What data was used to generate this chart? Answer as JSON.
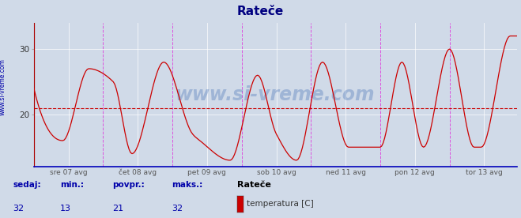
{
  "title": "Rateče",
  "title_color": "#000080",
  "title_fontsize": 11,
  "bg_color": "#d0dae8",
  "plot_bg_color": "#d0dae8",
  "line_color": "#cc0000",
  "line_width": 0.9,
  "y_min": 12,
  "y_max": 34,
  "y_ticks": [
    20,
    30
  ],
  "avg_line_y": 21,
  "avg_line_color": "#cc0000",
  "grid_color": "#ffffff",
  "watermark": "www.si-vreme.com",
  "watermark_color": "#2255aa",
  "watermark_alpha": 0.28,
  "watermark_fontsize": 17,
  "vline_color_dashed": "#dd44dd",
  "vline_color_solid": "#888888",
  "x_tick_labels": [
    "sre 07 avg",
    "čet 08 avg",
    "pet 09 avg",
    "sob 10 avg",
    "ned 11 avg",
    "pon 12 avg",
    "tor 13 avg"
  ],
  "n_points": 336,
  "legend_label": "temperatura [C]",
  "legend_color": "#cc0000",
  "stat_labels": [
    "sedaj:",
    "min.:",
    "povpr.:",
    "maks.:"
  ],
  "stat_values": [
    "32",
    "13",
    "21",
    "32"
  ],
  "stat_color": "#0000aa",
  "sidebar_label": "www.si-vreme.com",
  "sidebar_color": "#0000aa",
  "station_name": "Rateče",
  "bottom_spine_color": "#0000bb",
  "left_spine_color": "#aa0000"
}
